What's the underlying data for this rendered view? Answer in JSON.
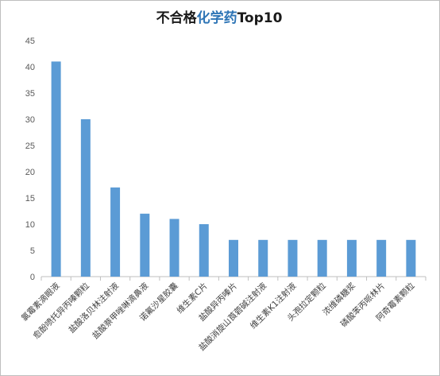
{
  "title": {
    "part1": "不合格",
    "part2": "化学药",
    "part3": "Top10",
    "accent_color": "#2e75b6"
  },
  "chart_data": {
    "type": "bar",
    "categories": [
      "氯霉素滴眼液",
      "愈酚喷托异丙嗪颗粒",
      "盐酸洛贝林注射液",
      "盐酸萘甲唑啉滴鼻液",
      "诺氟沙星胶囊",
      "维生素C片",
      "盐酸异丙嗪片",
      "盐酸消旋山莨菪碱注射液",
      "维生素K1注射液",
      "头孢拉定颗粒",
      "浓维磷糖浆",
      "磷酸苯丙哌林片",
      "阿奇霉素颗粒"
    ],
    "values": [
      41,
      30,
      17,
      12,
      11,
      10,
      7,
      7,
      7,
      7,
      7,
      7,
      7
    ],
    "ylim": [
      0,
      45
    ],
    "yticks": [
      0,
      5,
      10,
      15,
      20,
      25,
      30,
      35,
      40,
      45
    ],
    "bar_color": "#5b9bd5",
    "axis_color": "#bfbfbf",
    "grid": false,
    "legend": "none"
  }
}
